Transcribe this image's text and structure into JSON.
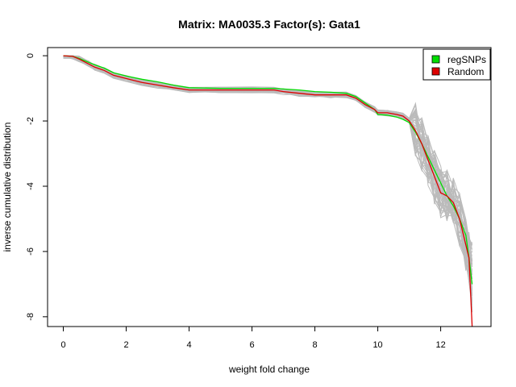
{
  "chart_data": {
    "type": "line",
    "title": "Matrix: MA0035.3 Factor(s): Gata1",
    "xlabel": "weight fold change",
    "ylabel": "inverse cumulative distribution",
    "xlim": [
      -0.5,
      13.6
    ],
    "ylim": [
      -8.3,
      0.25
    ],
    "x_ticks": [
      0,
      2,
      4,
      6,
      8,
      10,
      12
    ],
    "y_ticks": [
      0,
      -2,
      -4,
      -6,
      -8
    ],
    "grid": false,
    "legend_position": "top-right",
    "series": [
      {
        "name": "regSNPs",
        "color": "#00dd00",
        "x": [
          0,
          0.3,
          0.5,
          0.8,
          1.0,
          1.3,
          1.6,
          2.0,
          2.5,
          3.0,
          3.5,
          4.0,
          5.0,
          6.0,
          6.7,
          7.0,
          7.5,
          8.0,
          8.5,
          9.0,
          9.3,
          9.6,
          9.9,
          10.0,
          10.3,
          10.6,
          10.8,
          11.0,
          11.2,
          11.4,
          11.6,
          11.8,
          12.0,
          12.2,
          12.4,
          12.6,
          12.8,
          12.9,
          13.0
        ],
        "y": [
          0,
          -0.02,
          -0.08,
          -0.2,
          -0.28,
          -0.38,
          -0.52,
          -0.62,
          -0.72,
          -0.8,
          -0.9,
          -0.98,
          -1.0,
          -1.0,
          -1.0,
          -1.02,
          -1.05,
          -1.1,
          -1.12,
          -1.15,
          -1.25,
          -1.45,
          -1.65,
          -1.8,
          -1.82,
          -1.88,
          -1.95,
          -2.05,
          -2.35,
          -2.7,
          -3.1,
          -3.5,
          -3.9,
          -4.3,
          -4.6,
          -5.0,
          -5.5,
          -6.2,
          -7.0
        ]
      },
      {
        "name": "Random",
        "color": "#dd0000",
        "x": [
          0,
          0.3,
          0.5,
          0.8,
          1.0,
          1.3,
          1.6,
          2.0,
          2.5,
          3.0,
          3.5,
          4.0,
          5.0,
          6.0,
          6.7,
          7.0,
          7.5,
          8.0,
          8.5,
          9.0,
          9.3,
          9.6,
          9.9,
          10.0,
          10.3,
          10.6,
          10.8,
          11.0,
          11.2,
          11.4,
          11.6,
          11.8,
          12.0,
          12.2,
          12.4,
          12.6,
          12.8,
          12.9,
          13.0
        ],
        "y": [
          0,
          -0.02,
          -0.1,
          -0.25,
          -0.35,
          -0.45,
          -0.6,
          -0.7,
          -0.82,
          -0.9,
          -0.98,
          -1.05,
          -1.05,
          -1.05,
          -1.05,
          -1.1,
          -1.15,
          -1.2,
          -1.2,
          -1.2,
          -1.3,
          -1.5,
          -1.65,
          -1.75,
          -1.75,
          -1.8,
          -1.85,
          -2.0,
          -2.3,
          -2.7,
          -3.2,
          -3.7,
          -4.2,
          -4.3,
          -4.5,
          -5.0,
          -5.8,
          -6.2,
          -8.4
        ]
      }
    ],
    "background_series_color": "#bbbbbb"
  },
  "legend": {
    "items": [
      {
        "label": "regSNPs",
        "color": "#00dd00"
      },
      {
        "label": "Random",
        "color": "#dd0000"
      }
    ]
  }
}
